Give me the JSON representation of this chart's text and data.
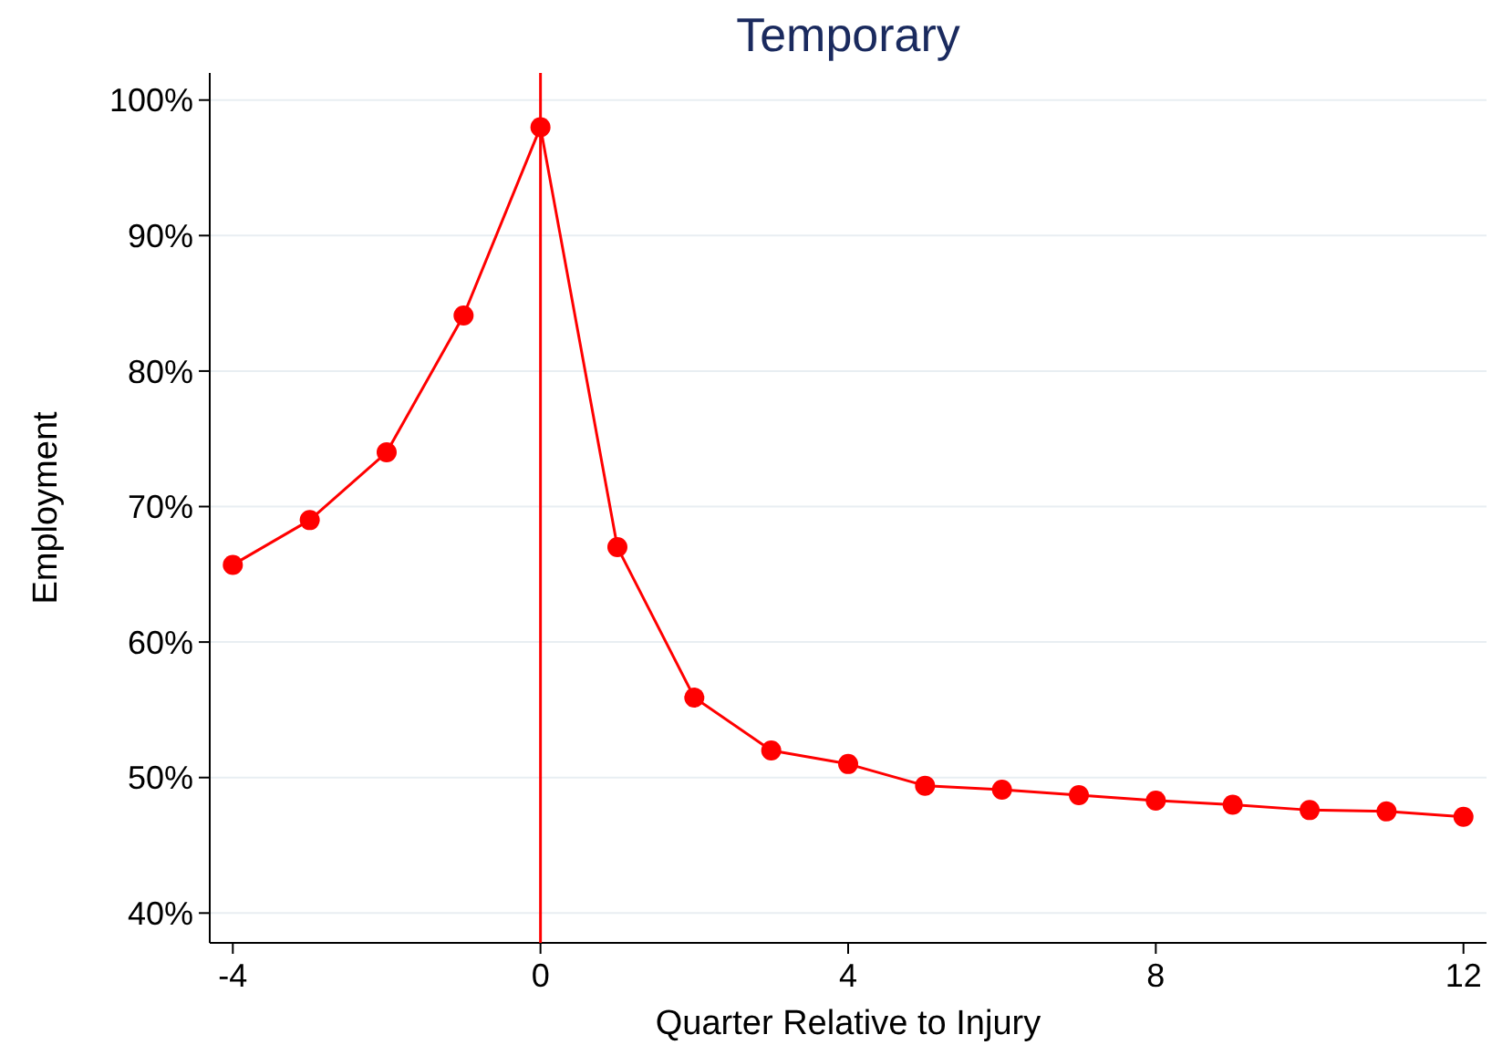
{
  "chart_data": {
    "type": "line",
    "title": "Temporary",
    "xlabel": "Quarter Relative to Injury",
    "ylabel": "Employment",
    "x": [
      -4,
      -3,
      -2,
      -1,
      0,
      1,
      2,
      3,
      4,
      5,
      6,
      7,
      8,
      9,
      10,
      11,
      12
    ],
    "series": [
      {
        "color": "#ff0000",
        "values": [
          65.7,
          69.0,
          74.0,
          84.1,
          98.0,
          67.0,
          55.9,
          52.0,
          51.0,
          49.4,
          49.1,
          48.7,
          48.3,
          48.0,
          47.6,
          47.5,
          47.1
        ]
      }
    ],
    "xlim": [
      -4.3,
      12.3
    ],
    "xticks": [
      -4,
      0,
      4,
      8,
      12
    ],
    "ylim": [
      37.8,
      102
    ],
    "yticks": [
      {
        "value": 40,
        "label": "40%"
      },
      {
        "value": 50,
        "label": "50%"
      },
      {
        "value": 60,
        "label": "60%"
      },
      {
        "value": 70,
        "label": "70%"
      },
      {
        "value": 80,
        "label": "80%"
      },
      {
        "value": 90,
        "label": "90%"
      },
      {
        "value": 100,
        "label": "100%"
      }
    ],
    "grid": "y",
    "marker": "circle",
    "line_style": "solid",
    "ref_lines": [
      {
        "axis": "x",
        "value": 0,
        "color": "#ff0000"
      }
    ]
  }
}
